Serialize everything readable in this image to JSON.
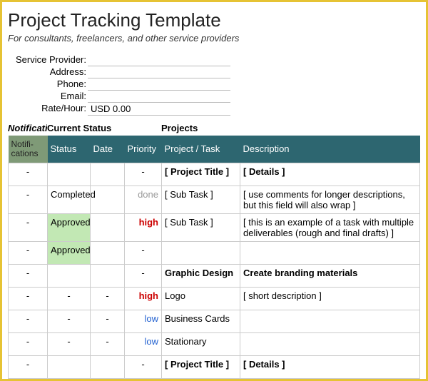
{
  "title": "Project Tracking Template",
  "subtitle": "For consultants, freelancers, and other service providers",
  "info": {
    "provider_label": "Service Provider:",
    "provider_value": "",
    "address_label": "Address:",
    "address_value": "",
    "phone_label": "Phone:",
    "phone_value": "",
    "email_label": "Email:",
    "email_value": "",
    "rate_label": "Rate/Hour:",
    "rate_value": "USD 0.00"
  },
  "section_headers": {
    "notifications": "Notificati",
    "current_status": "Current Status",
    "projects": "Projects"
  },
  "columns": {
    "notif": "Notifi-cations",
    "status": "Status",
    "date": "Date",
    "priority": "Priority",
    "project": "Project / Task",
    "description": "Description"
  },
  "rows": [
    {
      "notif": "-",
      "status": "",
      "date": "",
      "priority": "-",
      "project": "[ Project Title ]",
      "description": "[ Details ]",
      "project_bold": true,
      "desc_bold": true
    },
    {
      "notif": "-",
      "status": "Completed",
      "date": "",
      "priority": "done",
      "priority_class": "done",
      "project": "[ Sub Task ]",
      "description": "[ use comments for longer descriptions, but this field will also wrap ]"
    },
    {
      "notif": "-",
      "status": "Approved",
      "status_class": "approved",
      "date": "",
      "priority": "high",
      "priority_class": "high",
      "project": "[ Sub Task ]",
      "description": "[ this is an example of a task with multiple deliverables (rough and final drafts) ]"
    },
    {
      "notif": "-",
      "status": "Approved",
      "status_class": "approved",
      "date": "",
      "priority": "-",
      "project": "",
      "description": ""
    },
    {
      "notif": "-",
      "status": "",
      "date": "",
      "priority": "-",
      "project": "Graphic Design",
      "description": "Create branding materials",
      "project_bold": true,
      "desc_bold": true
    },
    {
      "notif": "-",
      "status": "-",
      "date": "-",
      "priority": "high",
      "priority_class": "high",
      "project": "Logo",
      "description": "[ short description ]"
    },
    {
      "notif": "-",
      "status": "-",
      "date": "-",
      "priority": "low",
      "priority_class": "low",
      "project": "Business Cards",
      "description": ""
    },
    {
      "notif": "-",
      "status": "-",
      "date": "-",
      "priority": "low",
      "priority_class": "low",
      "project": "Stationary",
      "description": ""
    },
    {
      "notif": "-",
      "status": "",
      "date": "",
      "priority": "-",
      "project": "[ Project Title ]",
      "description": "[ Details ]",
      "project_bold": true,
      "desc_bold": true
    }
  ],
  "colors": {
    "border": "#e6c334",
    "header_bg": "#2d6670",
    "notif_header_bg": "#7f9a77",
    "approved_bg": "#c2e8b4",
    "high": "#c00",
    "low": "#2060d0",
    "done": "#999"
  }
}
